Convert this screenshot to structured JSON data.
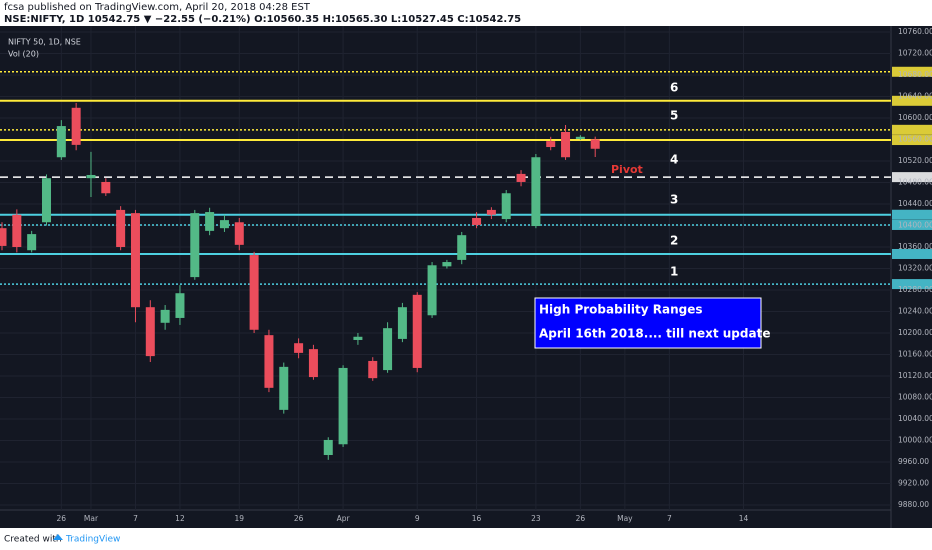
{
  "header": {
    "line1": "fcsa published on TradingView.com, April 20, 2018 04:28 EST",
    "line2": "NSE:NIFTY, 1D 10542.75 ▼ −22.55 (−0.21%) O:10560.35 H:10565.30 L:10527.45 C:10542.75"
  },
  "footer": {
    "created": "Created with",
    "brand": "TradingView"
  },
  "chart_data": {
    "type": "candlestick",
    "symbol": "NIFTY 50, 1D, NSE",
    "indicator": "Vol (20)",
    "categories": [
      null,
      null,
      null,
      null,
      "26",
      null,
      "Mar",
      null,
      null,
      "7",
      null,
      null,
      "12",
      null,
      null,
      null,
      "19",
      null,
      null,
      null,
      "26",
      null,
      null,
      "Apr",
      null,
      null,
      null,
      null,
      "9",
      null,
      null,
      null,
      "16",
      null,
      null,
      null,
      "23",
      null,
      null,
      "26",
      null,
      null,
      "May",
      null,
      null,
      "7",
      null,
      null,
      null,
      null,
      "14"
    ],
    "open": [
      10395,
      10420,
      10354,
      10406,
      10527,
      10619,
      10488,
      10481,
      10429,
      10423,
      10248,
      10219,
      10228,
      10304,
      10390,
      10395,
      10406,
      10345,
      10196,
      10057,
      10181,
      10170,
      9973,
      9993,
      10187,
      10148,
      10131,
      10189,
      10271,
      10233,
      10324,
      10336,
      10414,
      10429,
      10412,
      10496,
      10399,
      10557,
      10574,
      10561,
      10560.35,
      null,
      null,
      null,
      null,
      null,
      null,
      null,
      null,
      null,
      null
    ],
    "high": [
      10406,
      10430,
      10390,
      10495,
      10596,
      10628,
      10537,
      10488,
      10436,
      10429,
      10261,
      10252,
      10289,
      10429,
      10433,
      10420,
      10414,
      10351,
      10206,
      10145,
      10190,
      10178,
      10006,
      10140,
      10200,
      10155,
      10220,
      10256,
      10276,
      10332,
      10336,
      10388,
      10425,
      10434,
      10466,
      10503,
      10533,
      10565,
      10587,
      10568,
      10565.3,
      null,
      null,
      null,
      null,
      null,
      null,
      null,
      null,
      null,
      null
    ],
    "low": [
      10354,
      10350,
      10350,
      10400,
      10522,
      10540,
      10453,
      10455,
      10354,
      10220,
      10146,
      10206,
      10215,
      10299,
      10382,
      10388,
      10354,
      10200,
      10090,
      10050,
      10153,
      10113,
      9964,
      9988,
      10178,
      10111,
      10126,
      10183,
      10127,
      10228,
      10320,
      10328,
      10395,
      10412,
      10406,
      10473,
      10395,
      10540,
      10522,
      10559,
      10527.45,
      null,
      null,
      null,
      null,
      null,
      null,
      null,
      null,
      null,
      null
    ],
    "close": [
      10362,
      10360,
      10384,
      10488,
      10585,
      10550,
      10494,
      10460,
      10360,
      10248,
      10157,
      10243,
      10274,
      10423,
      10425,
      10410,
      10364,
      10206,
      10098,
      10137,
      10163,
      10118,
      10001,
      10135,
      10193,
      10116,
      10209,
      10248,
      10135,
      10326,
      10332,
      10382,
      10401,
      10420,
      10460,
      10481,
      10527,
      10546,
      10527,
      10565,
      10542.75,
      null,
      null,
      null,
      null,
      null,
      null,
      null,
      null,
      null,
      null
    ],
    "up_color": "#53b987",
    "down_color": "#eb4d5c",
    "levels": [
      {
        "value": 10686,
        "color": "#ffeb3b",
        "style": "dotted"
      },
      {
        "value": 10632,
        "color": "#ffeb3b",
        "style": "solid"
      },
      {
        "value": 10578,
        "color": "#ffeb3b",
        "style": "dotted"
      },
      {
        "value": 10559,
        "color": "#ffeb3b",
        "style": "solid"
      },
      {
        "value": 10490,
        "color": "#ffffff",
        "style": "dashed"
      },
      {
        "value": 10420,
        "color": "#4dd0e1",
        "style": "solid"
      },
      {
        "value": 10401,
        "color": "#4dd0e1",
        "style": "dotted"
      },
      {
        "value": 10347,
        "color": "#4dd0e1",
        "style": "solid"
      },
      {
        "value": 10291,
        "color": "#4dd0e1",
        "style": "dotted"
      }
    ],
    "zone_labels": [
      "6",
      "5",
      "4",
      "3",
      "2",
      "1"
    ],
    "pivot_label": "Pivot",
    "box": {
      "title": "High Probability Ranges",
      "text": "April 16th 2018.... till next update"
    },
    "ylim": [
      9880,
      10760
    ],
    "yticks": [
      {
        "value": 9880,
        "label": "9880.00"
      },
      {
        "value": 9920,
        "label": "9920.00"
      },
      {
        "value": 9960,
        "label": "9960.00"
      },
      {
        "value": 10000,
        "label": "10000.00"
      },
      {
        "value": 10040,
        "label": "10040.00"
      },
      {
        "value": 10080,
        "label": "10080.00"
      },
      {
        "value": 10120,
        "label": "10120.00"
      },
      {
        "value": 10160,
        "label": "10160.00"
      },
      {
        "value": 10200,
        "label": "10200.00"
      },
      {
        "value": 10240,
        "label": "10240.00"
      },
      {
        "value": 10280,
        "label": "10280.00"
      },
      {
        "value": 10320,
        "label": "10320.00"
      },
      {
        "value": 10360,
        "label": "10360.00"
      },
      {
        "value": 10400,
        "label": "10400.00"
      },
      {
        "value": 10440,
        "label": "10440.00"
      },
      {
        "value": 10480,
        "label": "10480.00"
      },
      {
        "value": 10520,
        "label": "10520.00"
      },
      {
        "value": 10560,
        "label": "10560.00"
      },
      {
        "value": 10600,
        "label": "10600.00"
      },
      {
        "value": 10640,
        "label": "10640.00"
      },
      {
        "value": 10680,
        "label": "10680.00"
      },
      {
        "value": 10720,
        "label": "10720.00"
      },
      {
        "value": 10760,
        "label": "10760.00"
      }
    ],
    "grid": true
  }
}
